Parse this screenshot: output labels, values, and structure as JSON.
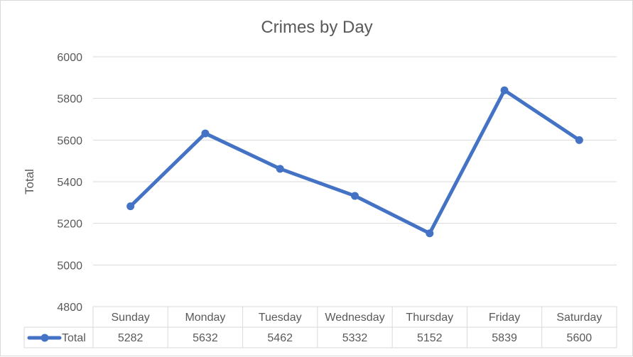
{
  "chart_data": {
    "type": "line",
    "title": "Crimes by Day",
    "xlabel": "",
    "ylabel": "Total",
    "categories": [
      "Sunday",
      "Monday",
      "Tuesday",
      "Wednesday",
      "Thursday",
      "Friday",
      "Saturday"
    ],
    "series": [
      {
        "name": "Total",
        "values": [
          5282,
          5632,
          5462,
          5332,
          5152,
          5839,
          5600
        ],
        "color": "#4472C4"
      }
    ],
    "yticks": [
      "6000",
      "5800",
      "5600",
      "5400",
      "5200",
      "5000",
      "4800"
    ],
    "ylim": [
      4800,
      6000
    ],
    "grid": true,
    "legend": "data table",
    "data_table": true
  }
}
